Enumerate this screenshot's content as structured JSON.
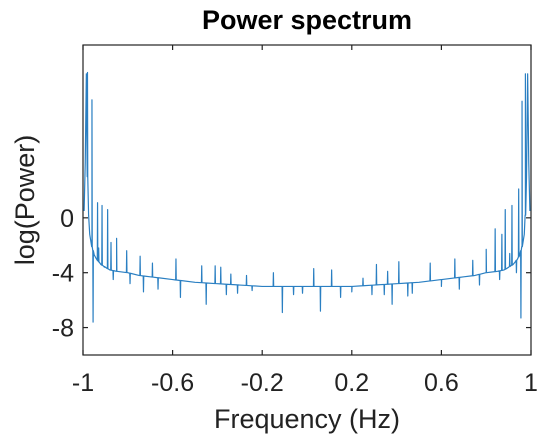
{
  "chart_data": {
    "type": "line",
    "title": "Power spectrum",
    "xlabel": "Frequency (Hz)",
    "ylabel": "log(Power)",
    "xlim": [
      -1,
      1
    ],
    "ylim": [
      -10,
      12.6
    ],
    "xticks": [
      -1,
      -0.6,
      -0.2,
      0.2,
      0.6,
      1
    ],
    "xtick_labels": [
      "-1",
      "-0.6",
      "-0.2",
      "0.2",
      "0.6",
      "1"
    ],
    "yticks": [
      -8,
      -4,
      0
    ],
    "ytick_labels": [
      "-8",
      "-4",
      "0"
    ],
    "grid": false,
    "box": true,
    "series": [
      {
        "color": "#2a7fc2",
        "baseline": {
          "x": [
            -0.995,
            -0.99,
            -0.985,
            -0.98,
            -0.975,
            -0.97,
            -0.96,
            -0.95,
            -0.94,
            -0.93,
            -0.92,
            -0.9,
            -0.88,
            -0.85,
            -0.8,
            -0.75,
            -0.7,
            -0.6,
            -0.5,
            -0.4,
            -0.3,
            -0.2,
            -0.1,
            0,
            0.1,
            0.2,
            0.3,
            0.4,
            0.5,
            0.6,
            0.7,
            0.75,
            0.8,
            0.85,
            0.88,
            0.9,
            0.92,
            0.93,
            0.94,
            0.95,
            0.96,
            0.97,
            0.975,
            0.98,
            0.985,
            0.99,
            0.995
          ],
          "y": [
            0.5,
            4.0,
            10.5,
            3.0,
            0.2,
            -1.2,
            -2.1,
            -2.7,
            -3.0,
            -3.2,
            -3.4,
            -3.6,
            -3.8,
            -3.9,
            -4.0,
            -4.2,
            -4.3,
            -4.5,
            -4.7,
            -4.8,
            -4.9,
            -5.0,
            -5.0,
            -5.0,
            -5.0,
            -5.0,
            -4.9,
            -4.8,
            -4.7,
            -4.5,
            -4.3,
            -4.2,
            -4.0,
            -3.9,
            -3.8,
            -3.6,
            -3.4,
            -3.2,
            -3.0,
            -2.7,
            -2.1,
            -1.2,
            0.2,
            3.0,
            10.5,
            4.0,
            0.5
          ]
        },
        "spikes": [
          {
            "x": -0.98,
            "y": 10.6
          },
          {
            "x": -0.96,
            "y": 8.6
          },
          {
            "x": -0.955,
            "y": -7.6
          },
          {
            "x": -0.935,
            "y": 1.1
          },
          {
            "x": -0.93,
            "y": -2.2
          },
          {
            "x": -0.915,
            "y": 0.9
          },
          {
            "x": -0.905,
            "y": -3.6
          },
          {
            "x": -0.89,
            "y": 0.6
          },
          {
            "x": -0.875,
            "y": -1.8
          },
          {
            "x": -0.865,
            "y": -4.5
          },
          {
            "x": -0.85,
            "y": -1.5
          },
          {
            "x": -0.805,
            "y": -2.4
          },
          {
            "x": -0.79,
            "y": -4.8
          },
          {
            "x": -0.745,
            "y": -2.8
          },
          {
            "x": -0.73,
            "y": -5.4
          },
          {
            "x": -0.69,
            "y": -3.3
          },
          {
            "x": -0.665,
            "y": -5.2
          },
          {
            "x": -0.585,
            "y": -3.0
          },
          {
            "x": -0.565,
            "y": -5.8
          },
          {
            "x": -0.47,
            "y": -3.5
          },
          {
            "x": -0.45,
            "y": -6.3
          },
          {
            "x": -0.41,
            "y": -3.5
          },
          {
            "x": -0.385,
            "y": -3.6
          },
          {
            "x": -0.36,
            "y": -5.6
          },
          {
            "x": -0.34,
            "y": -4.1
          },
          {
            "x": -0.31,
            "y": -5.5
          },
          {
            "x": -0.27,
            "y": -4.2
          },
          {
            "x": -0.245,
            "y": -5.3
          },
          {
            "x": -0.15,
            "y": -4.0
          },
          {
            "x": -0.11,
            "y": -6.9
          },
          {
            "x": -0.06,
            "y": -5.6
          },
          {
            "x": -0.02,
            "y": -5.5
          },
          {
            "x": 0.03,
            "y": -3.7
          },
          {
            "x": 0.06,
            "y": -6.8
          },
          {
            "x": 0.11,
            "y": -3.8
          },
          {
            "x": 0.15,
            "y": -5.8
          },
          {
            "x": 0.2,
            "y": -5.4
          },
          {
            "x": 0.25,
            "y": -4.4
          },
          {
            "x": 0.29,
            "y": -5.6
          },
          {
            "x": 0.31,
            "y": -3.4
          },
          {
            "x": 0.345,
            "y": -5.6
          },
          {
            "x": 0.36,
            "y": -3.9
          },
          {
            "x": 0.38,
            "y": -6.3
          },
          {
            "x": 0.41,
            "y": -3.2
          },
          {
            "x": 0.45,
            "y": -5.7
          },
          {
            "x": 0.47,
            "y": -5.5
          },
          {
            "x": 0.55,
            "y": -3.3
          },
          {
            "x": 0.6,
            "y": -5.0
          },
          {
            "x": 0.66,
            "y": -3.0
          },
          {
            "x": 0.68,
            "y": -5.2
          },
          {
            "x": 0.74,
            "y": -3.1
          },
          {
            "x": 0.77,
            "y": -4.9
          },
          {
            "x": 0.8,
            "y": -2.3
          },
          {
            "x": 0.84,
            "y": -0.8
          },
          {
            "x": 0.86,
            "y": -4.5
          },
          {
            "x": 0.87,
            "y": -1.2
          },
          {
            "x": 0.885,
            "y": 0.6
          },
          {
            "x": 0.905,
            "y": -2.6
          },
          {
            "x": 0.915,
            "y": 0.9
          },
          {
            "x": 0.935,
            "y": -4.0
          },
          {
            "x": 0.945,
            "y": 2.1
          },
          {
            "x": 0.955,
            "y": -7.3
          },
          {
            "x": 0.96,
            "y": 8.5
          },
          {
            "x": 0.975,
            "y": 10.5
          }
        ]
      }
    ]
  }
}
